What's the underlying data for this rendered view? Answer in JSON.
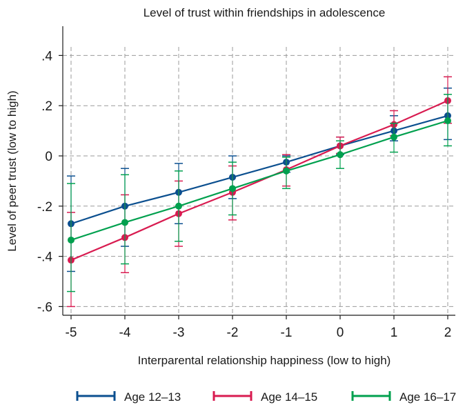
{
  "chart_data": {
    "type": "line",
    "title": "Level of trust within friendships in adolescence",
    "xlabel": "Interparental relationship happiness (low to high)",
    "ylabel": "Level of peer trust (low to high)",
    "x": [
      -5,
      -4,
      -3,
      -2,
      -1,
      0,
      1,
      2
    ],
    "x_tick_labels": [
      "-5",
      "-4",
      "-3",
      "-2",
      "-1",
      "0",
      "1",
      "2"
    ],
    "y_ticks": [
      -0.6,
      -0.4,
      -0.2,
      0,
      0.2,
      0.4
    ],
    "y_tick_labels": [
      ".4",
      ".2",
      "0",
      "-.2",
      "-.4",
      "-.6"
    ],
    "xlim": [
      -5.05,
      2.05
    ],
    "ylim": [
      -0.64,
      0.52
    ],
    "grid": true,
    "legend_position": "bottom",
    "series": [
      {
        "name": "Age 12–13",
        "color": "#0b4f8f",
        "values": [
          -0.27,
          -0.2,
          -0.145,
          -0.085,
          -0.025,
          0.04,
          0.1,
          0.16
        ],
        "ci_low": [
          -0.46,
          -0.36,
          -0.27,
          -0.17,
          -0.065,
          0.005,
          0.06,
          0.065
        ],
        "ci_high": [
          -0.08,
          -0.05,
          -0.03,
          0.0,
          0.0,
          0.075,
          0.16,
          0.27
        ]
      },
      {
        "name": "Age 14–15",
        "color": "#d81b50",
        "values": [
          -0.415,
          -0.325,
          -0.23,
          -0.145,
          -0.055,
          0.04,
          0.125,
          0.22
        ],
        "ci_low": [
          -0.6,
          -0.465,
          -0.36,
          -0.255,
          -0.12,
          0.01,
          0.08,
          0.13
        ],
        "ci_high": [
          -0.225,
          -0.155,
          -0.1,
          -0.04,
          0.005,
          0.075,
          0.18,
          0.315
        ]
      },
      {
        "name": "Age 16–17",
        "color": "#00a04e",
        "values": [
          -0.335,
          -0.265,
          -0.2,
          -0.13,
          -0.06,
          0.005,
          0.075,
          0.14
        ],
        "ci_low": [
          -0.54,
          -0.43,
          -0.34,
          -0.235,
          -0.13,
          -0.05,
          0.015,
          0.04
        ],
        "ci_high": [
          -0.11,
          -0.075,
          -0.06,
          -0.025,
          -0.005,
          0.06,
          0.13,
          0.245
        ]
      }
    ]
  }
}
